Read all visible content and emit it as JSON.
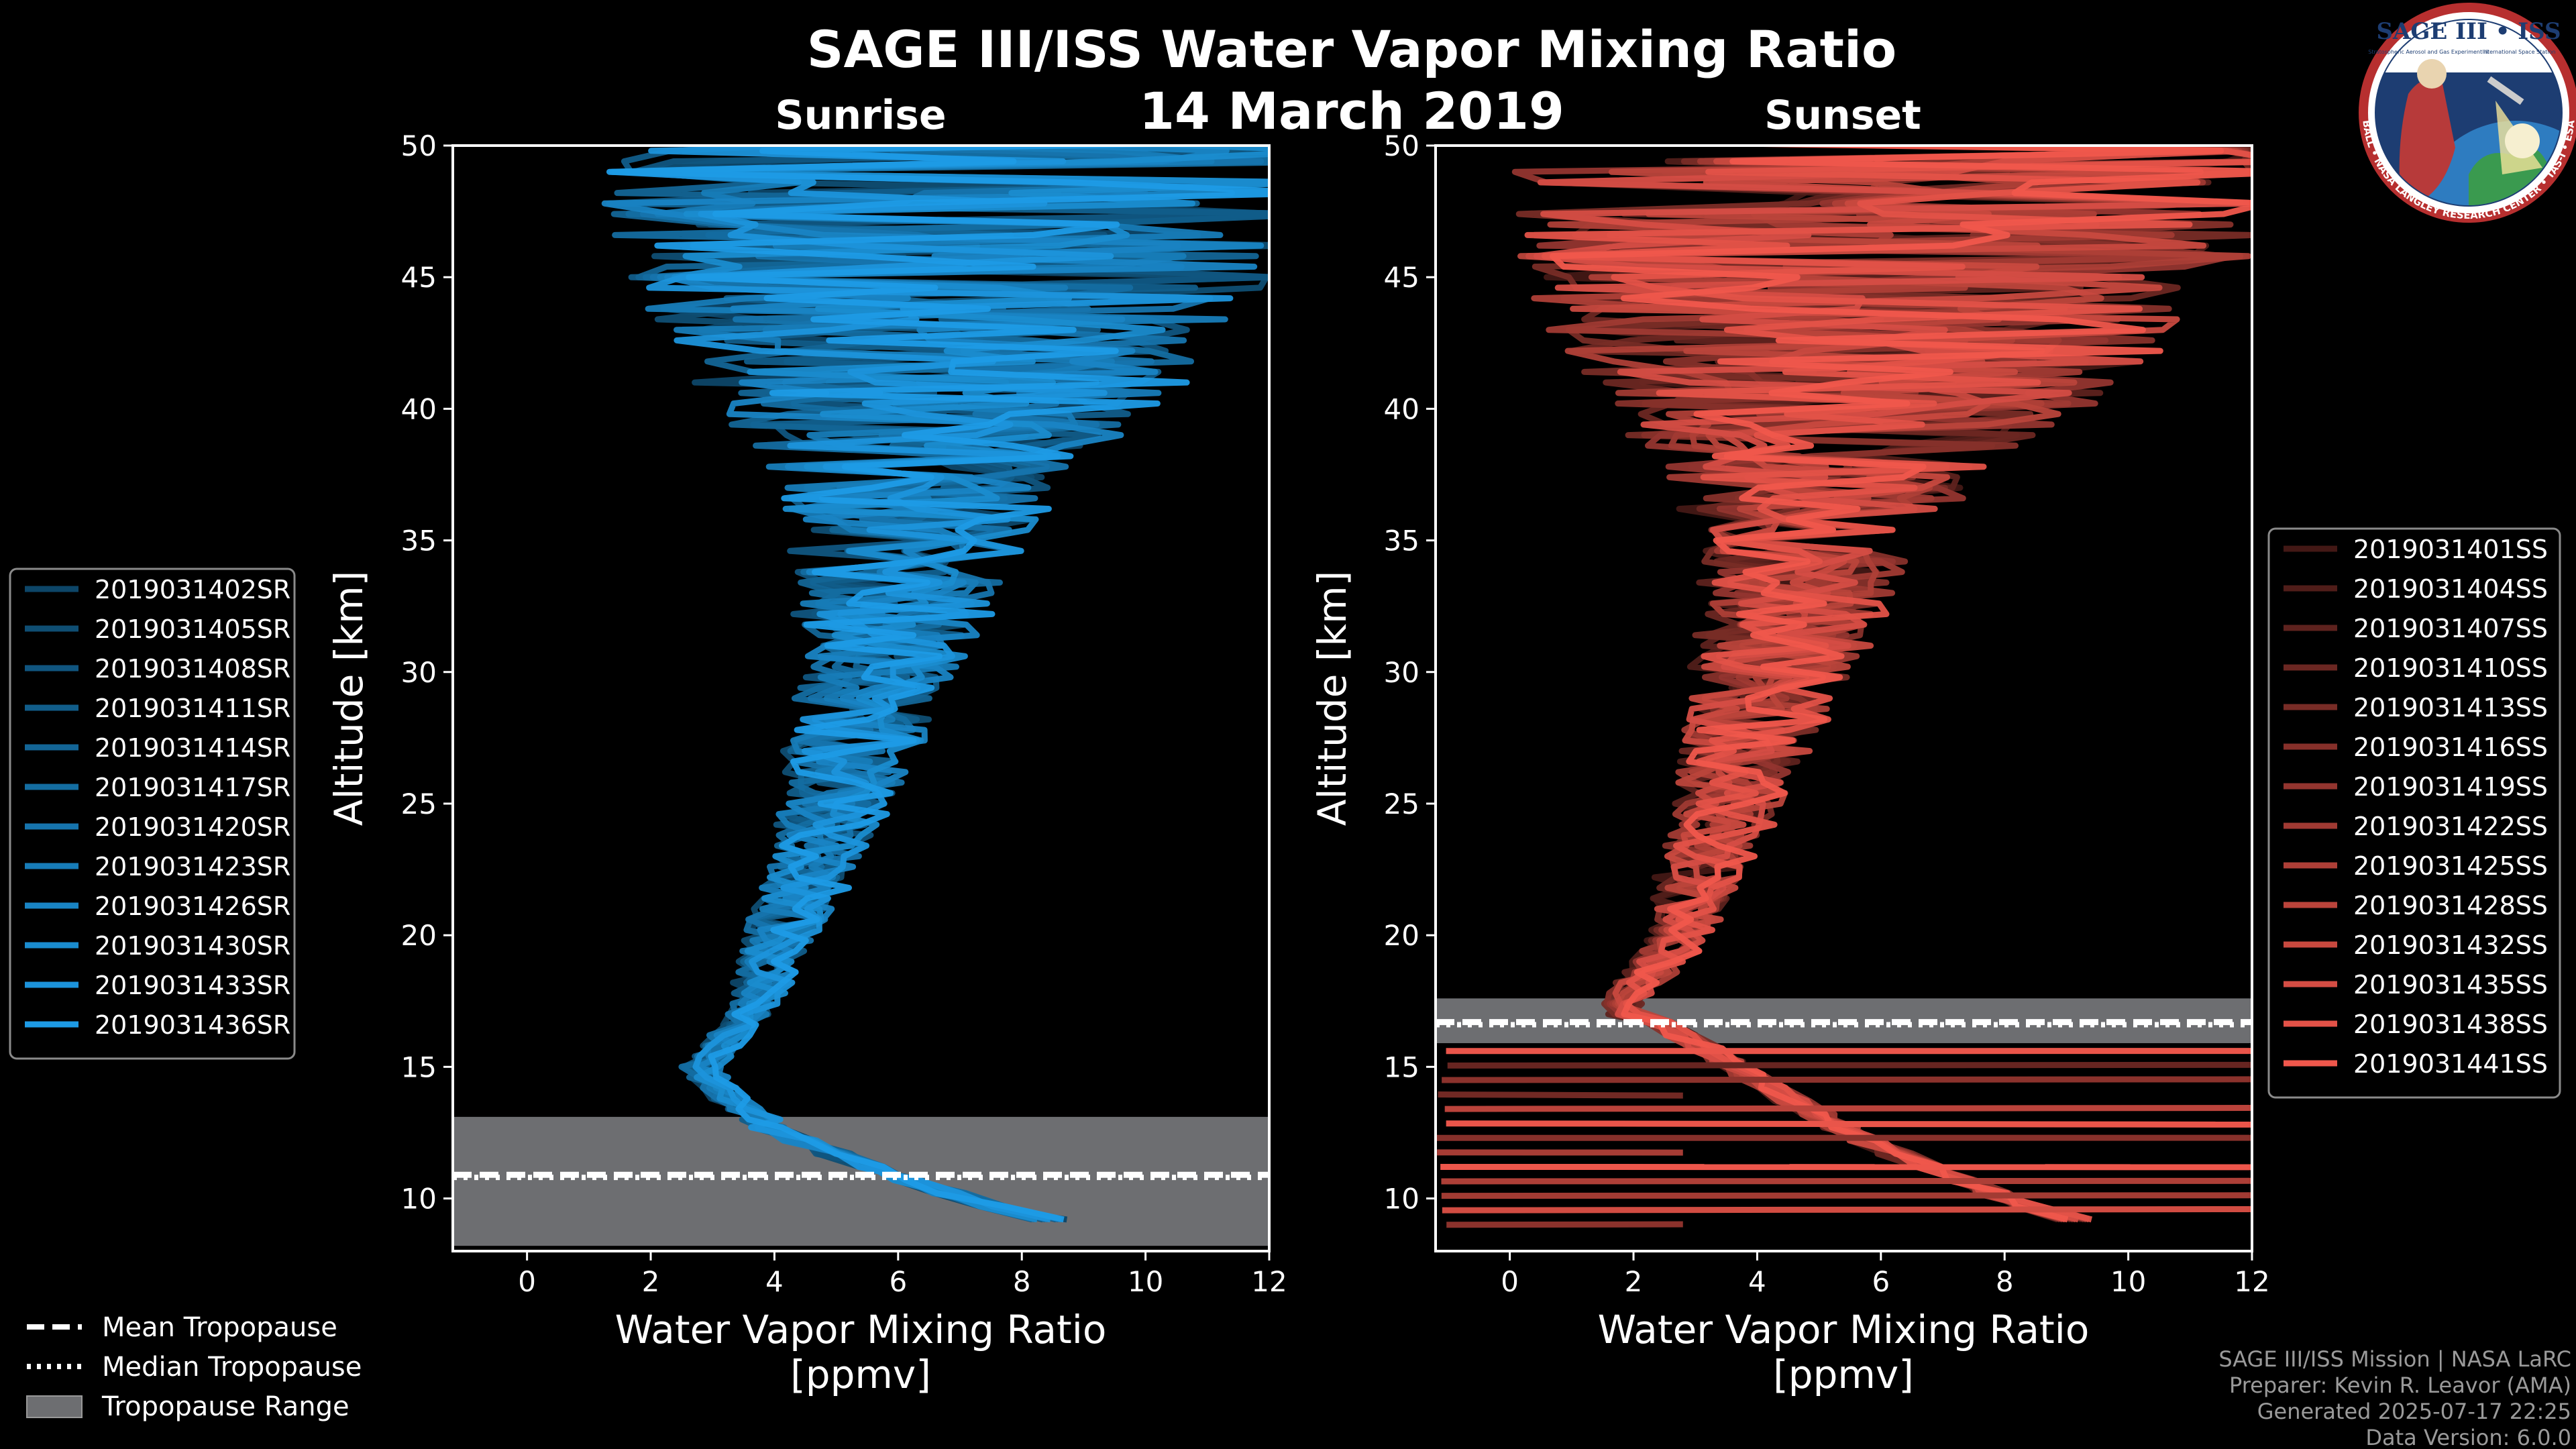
{
  "title": "SAGE III/ISS Water Vapor Mixing Ratio",
  "date": "14 March 2019",
  "logo": {
    "name": "SAGE III • ISS",
    "line1": "Stratospheric Aerosol and Gas Experiment III",
    "line2": "International Space Station",
    "ring": "BALL • NASA LANGLEY RESEARCH CENTER • TAS-I • ESA"
  },
  "footer": {
    "mission": "SAGE III/ISS Mission | NASA LaRC",
    "preparer": "Preparer: Kevin R. Leavor (AMA)",
    "generated": "Generated 2025-07-17 22:25",
    "version": "Data Version: 6.0.0"
  },
  "bottom_legend": [
    {
      "label": "Mean Tropopause",
      "style": "dashed"
    },
    {
      "label": "Median Tropopause",
      "style": "dotted"
    },
    {
      "label": "Tropopause Range",
      "style": "patch"
    }
  ],
  "colors": {
    "sunrise": "#1d9be6",
    "sunset": "#f0574c",
    "tropo_band": "#6d6e71",
    "axis": "#ffffff"
  },
  "chart_data": [
    {
      "type": "line",
      "panel": "sunrise",
      "title": "Sunrise",
      "xlabel": "Water Vapor Mixing Ratio\n[ppmv]",
      "ylabel": "Altitude [km]",
      "xlim": [
        -1.2,
        12
      ],
      "ylim": [
        8,
        50
      ],
      "xticks": [
        0,
        2,
        4,
        6,
        8,
        10,
        12
      ],
      "yticks": [
        10,
        15,
        20,
        25,
        30,
        35,
        40,
        45,
        50
      ],
      "tropopause": {
        "mean": 10.9,
        "median": 10.8,
        "range": [
          8.2,
          13.1
        ]
      },
      "legend_position": "left",
      "series_names": [
        "2019031402SR",
        "2019031405SR",
        "2019031408SR",
        "2019031411SR",
        "2019031414SR",
        "2019031417SR",
        "2019031420SR",
        "2019031423SR",
        "2019031426SR",
        "2019031430SR",
        "2019031433SR",
        "2019031436SR"
      ],
      "profile_shape": [
        [
          13.0,
          3.6
        ],
        [
          14.0,
          3.0
        ],
        [
          15.0,
          2.6
        ],
        [
          16.0,
          3.0
        ],
        [
          17.0,
          3.4
        ],
        [
          18.0,
          3.6
        ],
        [
          20.0,
          3.9
        ],
        [
          22.0,
          4.3
        ],
        [
          25.0,
          4.8
        ],
        [
          28.0,
          5.2
        ],
        [
          30.0,
          5.5
        ],
        [
          32.0,
          5.7
        ],
        [
          35.0,
          6.0
        ],
        [
          38.0,
          6.2
        ],
        [
          40.0,
          6.4
        ],
        [
          43.0,
          6.6
        ],
        [
          46.0,
          6.8
        ],
        [
          50.0,
          7.0
        ]
      ],
      "noise_model": [
        [
          13,
          0.3
        ],
        [
          18,
          0.4
        ],
        [
          20,
          0.6
        ],
        [
          25,
          0.9
        ],
        [
          30,
          1.3
        ],
        [
          35,
          1.9
        ],
        [
          38,
          2.6
        ],
        [
          40,
          3.6
        ],
        [
          44,
          5.0
        ],
        [
          50,
          6.5
        ]
      ]
    },
    {
      "type": "line",
      "panel": "sunset",
      "title": "Sunset",
      "xlabel": "Water Vapor Mixing Ratio\n[ppmv]",
      "ylabel": "Altitude [km]",
      "xlim": [
        -1.2,
        12
      ],
      "ylim": [
        8,
        50
      ],
      "xticks": [
        0,
        2,
        4,
        6,
        8,
        10,
        12
      ],
      "yticks": [
        10,
        15,
        20,
        25,
        30,
        35,
        40,
        45,
        50
      ],
      "tropopause": {
        "mean": 16.7,
        "median": 16.6,
        "range": [
          15.9,
          17.6
        ]
      },
      "legend_position": "right",
      "series_names": [
        "2019031401SS",
        "2019031404SS",
        "2019031407SS",
        "2019031410SS",
        "2019031413SS",
        "2019031416SS",
        "2019031419SS",
        "2019031422SS",
        "2019031425SS",
        "2019031428SS",
        "2019031432SS",
        "2019031435SS",
        "2019031438SS",
        "2019031441SS"
      ],
      "profile_shape": [
        [
          17.0,
          2.3
        ],
        [
          17.5,
          2.2
        ],
        [
          18.0,
          2.4
        ],
        [
          19.0,
          2.8
        ],
        [
          20.0,
          3.1
        ],
        [
          22.0,
          3.4
        ],
        [
          25.0,
          3.9
        ],
        [
          28.0,
          4.3
        ],
        [
          30.0,
          4.6
        ],
        [
          32.0,
          4.9
        ],
        [
          35.0,
          5.2
        ],
        [
          38.0,
          5.5
        ],
        [
          40.0,
          5.8
        ],
        [
          43.0,
          6.1
        ],
        [
          46.0,
          6.4
        ],
        [
          50.0,
          6.6
        ]
      ],
      "noise_model": [
        [
          17,
          0.3
        ],
        [
          20,
          0.5
        ],
        [
          25,
          0.9
        ],
        [
          30,
          1.3
        ],
        [
          35,
          1.8
        ],
        [
          38,
          2.8
        ],
        [
          40,
          4.0
        ],
        [
          44,
          5.5
        ],
        [
          50,
          7.0
        ]
      ]
    }
  ]
}
